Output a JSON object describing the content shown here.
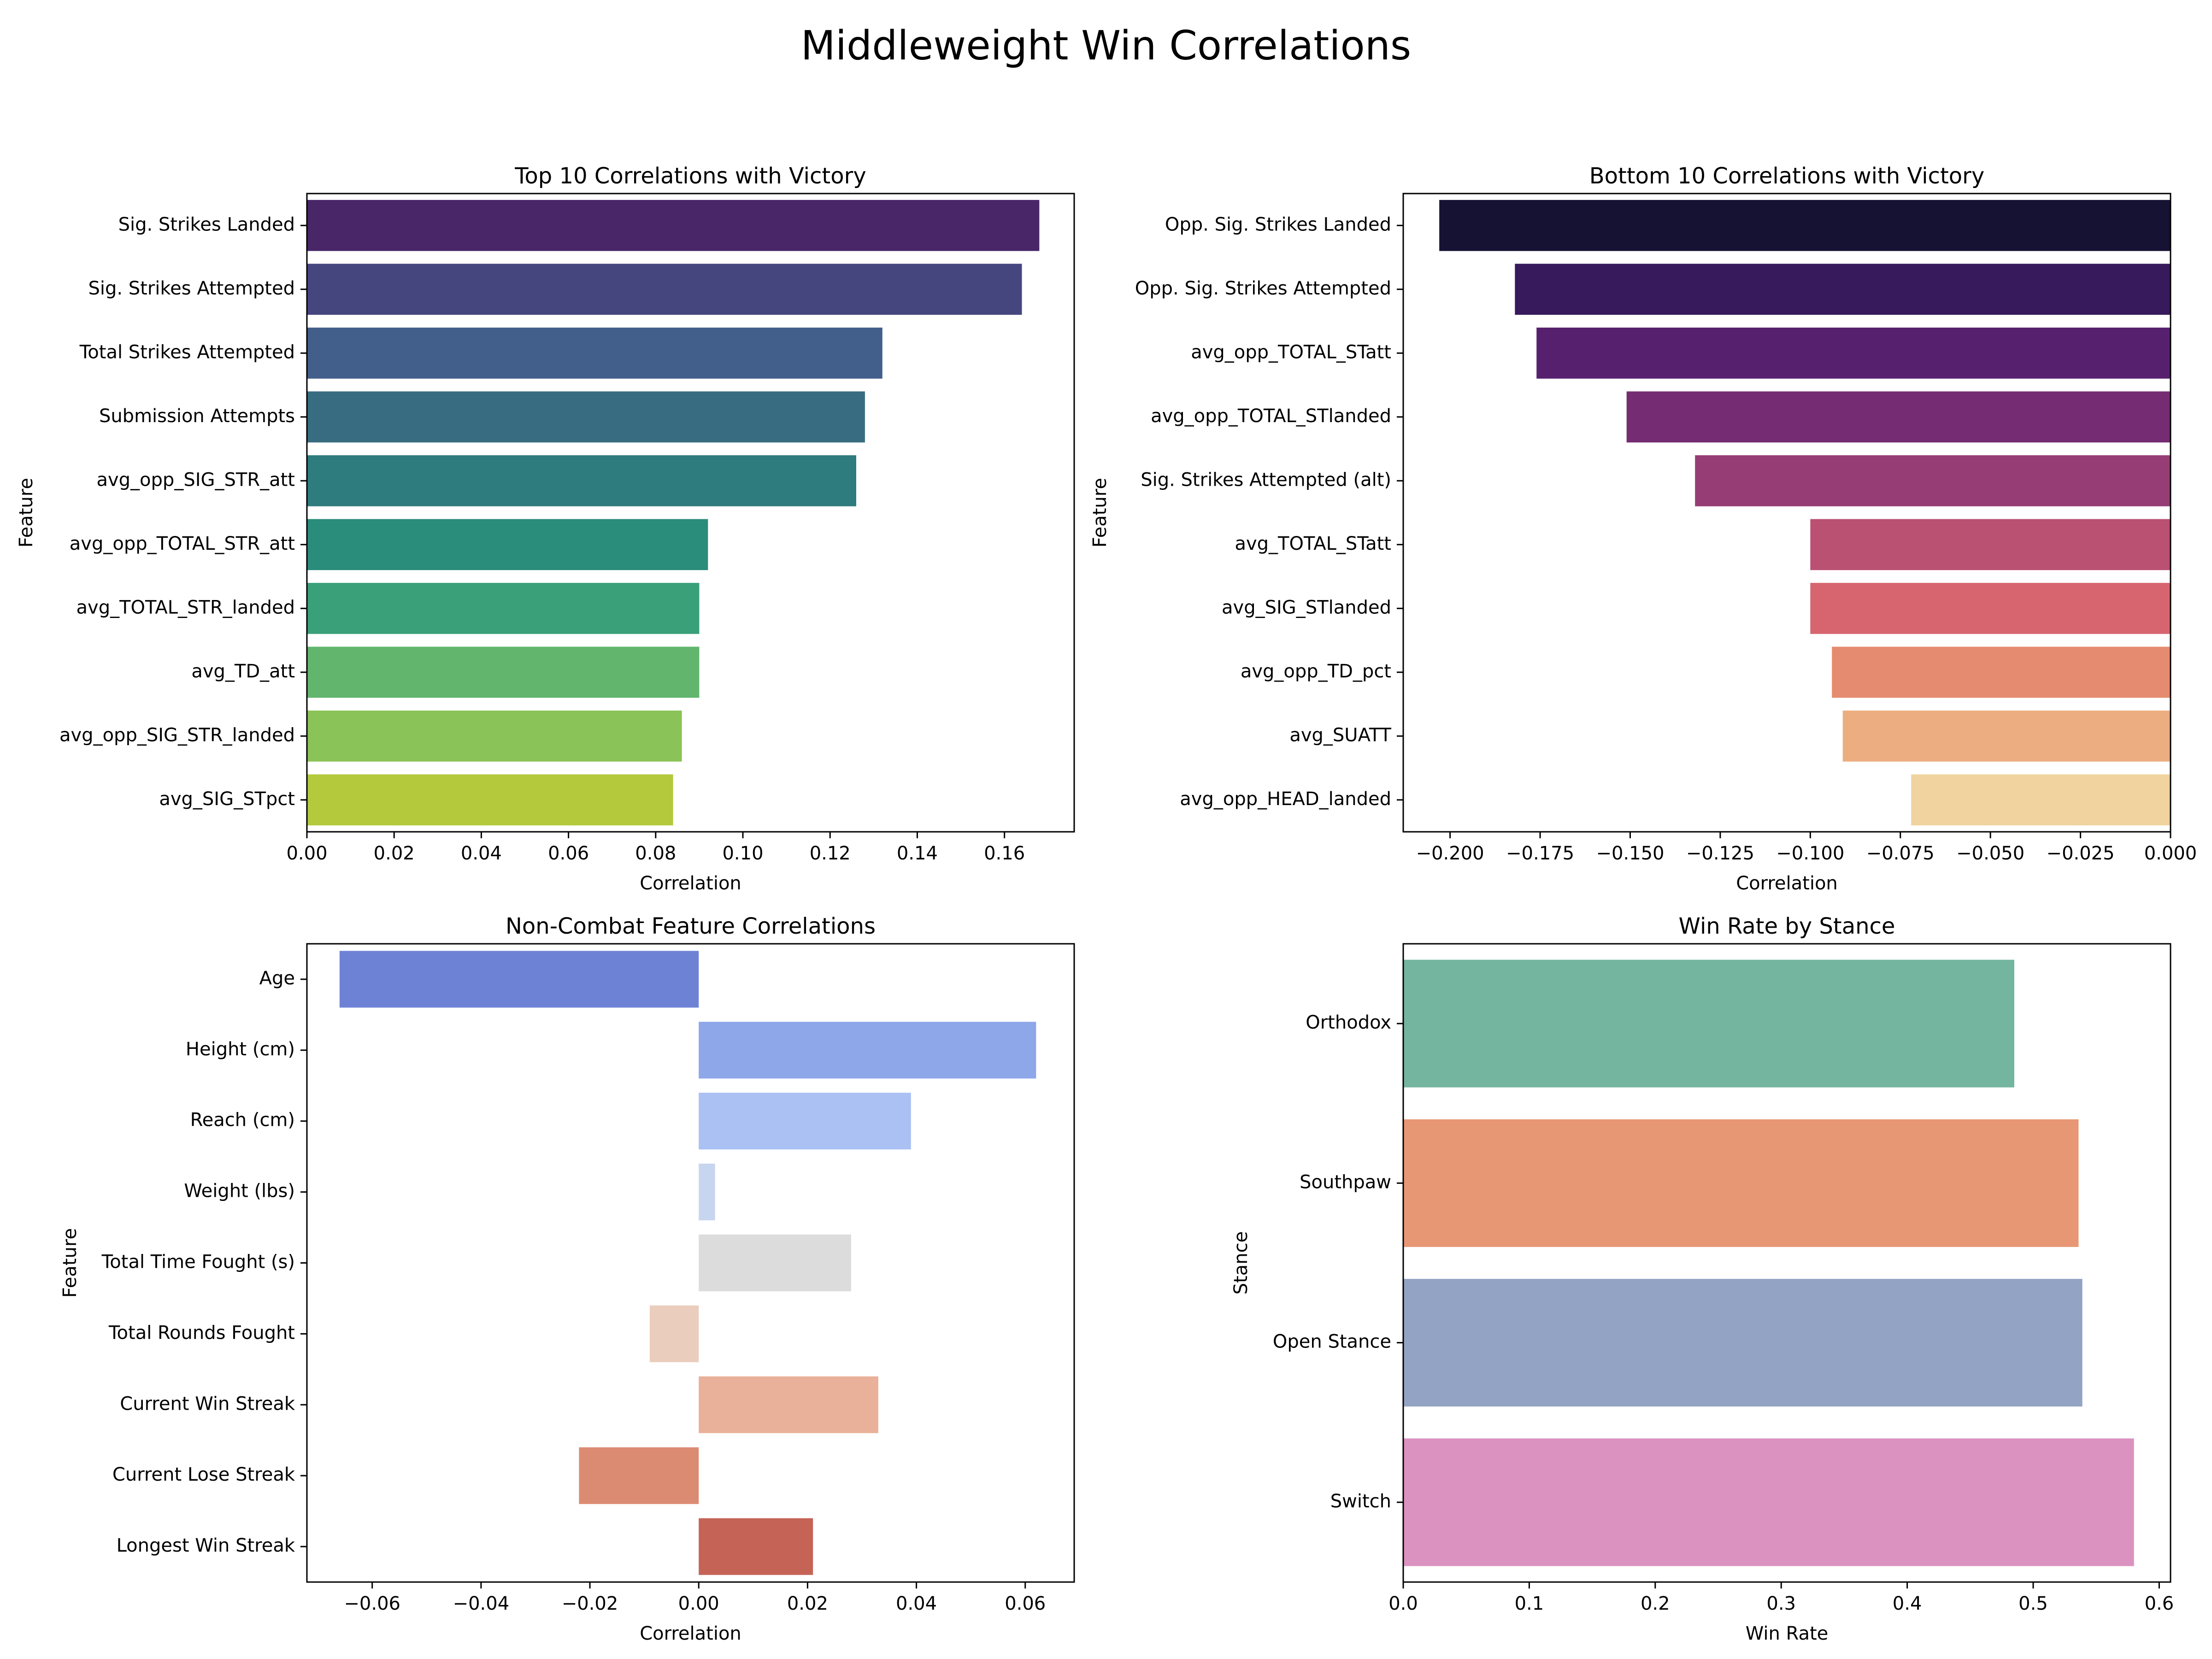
{
  "figure": {
    "title": "Middleweight Win Correlations"
  },
  "chart_data": [
    {
      "type": "bar",
      "orientation": "horizontal",
      "title": "Top 10 Correlations with Victory",
      "xlabel": "Correlation",
      "ylabel": "Feature",
      "categories": [
        "Sig. Strikes Landed",
        "Sig. Strikes Attempted",
        "Total Strikes Attempted",
        "Submission Attempts",
        "avg_opp_SIG_STR_att",
        "avg_opp_TOTAL_STR_att",
        "avg_TOTAL_STR_landed",
        "avg_TD_att",
        "avg_opp_SIG_STR_landed",
        "avg_SIG_STpct"
      ],
      "values": [
        0.168,
        0.164,
        0.132,
        0.128,
        0.126,
        0.092,
        0.09,
        0.09,
        0.086,
        0.084
      ],
      "colors": [
        "#482667",
        "#46467f",
        "#425e8a",
        "#386c81",
        "#2e7c7d",
        "#2a8c7b",
        "#3aa07a",
        "#62b56d",
        "#8ac357",
        "#b4c93c"
      ],
      "xlim": [
        0,
        0.176
      ],
      "xticks": [
        0.0,
        0.02,
        0.04,
        0.06,
        0.08,
        0.1,
        0.12,
        0.14,
        0.16
      ],
      "xtick_labels": [
        "0.00",
        "0.02",
        "0.04",
        "0.06",
        "0.08",
        "0.10",
        "0.12",
        "0.14",
        "0.16"
      ],
      "grid": false
    },
    {
      "type": "bar",
      "orientation": "horizontal",
      "title": "Bottom 10 Correlations with Victory",
      "xlabel": "Correlation",
      "ylabel": "Feature",
      "categories": [
        "Opp. Sig. Strikes Landed",
        "Opp. Sig. Strikes Attempted",
        "avg_opp_TOTAL_STatt",
        "avg_opp_TOTAL_STlanded",
        "Sig. Strikes Attempted (alt)",
        "avg_TOTAL_STatt",
        "avg_SIG_STlanded",
        "avg_opp_TD_pct",
        "avg_SUATT",
        "avg_opp_HEAD_landed"
      ],
      "values": [
        -0.203,
        -0.182,
        -0.176,
        -0.151,
        -0.132,
        -0.1,
        -0.1,
        -0.094,
        -0.091,
        -0.072
      ],
      "colors": [
        "#151233",
        "#361a5c",
        "#57206f",
        "#752c72",
        "#963d75",
        "#ba5072",
        "#d6656f",
        "#e58b6f",
        "#ecae80",
        "#f0d39f"
      ],
      "xlim": [
        -0.213,
        0.0
      ],
      "xticks": [
        -0.2,
        -0.175,
        -0.15,
        -0.125,
        -0.1,
        -0.075,
        -0.05,
        -0.025,
        0.0
      ],
      "xtick_labels": [
        "−0.200",
        "−0.175",
        "−0.150",
        "−0.125",
        "−0.100",
        "−0.075",
        "−0.050",
        "−0.025",
        "0.000"
      ],
      "grid": false
    },
    {
      "type": "bar",
      "orientation": "horizontal",
      "title": "Non-Combat Feature Correlations",
      "xlabel": "Correlation",
      "ylabel": "Feature",
      "categories": [
        "Age",
        "Height (cm)",
        "Reach (cm)",
        "Weight (lbs)",
        "Total Time Fought (s)",
        "Total Rounds Fought",
        "Current Win Streak",
        "Current Lose Streak",
        "Longest Win Streak"
      ],
      "values": [
        -0.066,
        0.062,
        0.039,
        0.003,
        0.028,
        -0.009,
        0.033,
        -0.022,
        0.021
      ],
      "colors": [
        "#6e82d5",
        "#8da7e9",
        "#abc1f4",
        "#c8d5ef",
        "#dcdcdc",
        "#ebcdbd",
        "#e9b199",
        "#dc8b73",
        "#c56357"
      ],
      "xlim": [
        -0.072,
        0.069
      ],
      "xticks": [
        -0.06,
        -0.04,
        -0.02,
        0.0,
        0.02,
        0.04,
        0.06
      ],
      "xtick_labels": [
        "−0.06",
        "−0.04",
        "−0.02",
        "0.00",
        "0.02",
        "0.04",
        "0.06"
      ],
      "grid": false
    },
    {
      "type": "bar",
      "orientation": "horizontal",
      "title": "Win Rate by Stance",
      "xlabel": "Win Rate",
      "ylabel": "Stance",
      "categories": [
        "Orthodox",
        "Southpaw",
        "Open Stance",
        "Switch"
      ],
      "values": [
        0.485,
        0.536,
        0.539,
        0.58
      ],
      "colors": [
        "#74b5a0",
        "#e89774",
        "#93a3c3",
        "#db92c0"
      ],
      "xlim": [
        0,
        0.609
      ],
      "xticks": [
        0.0,
        0.1,
        0.2,
        0.3,
        0.4,
        0.5,
        0.6
      ],
      "xtick_labels": [
        "0.0",
        "0.1",
        "0.2",
        "0.3",
        "0.4",
        "0.5",
        "0.6"
      ],
      "grid": false
    }
  ]
}
